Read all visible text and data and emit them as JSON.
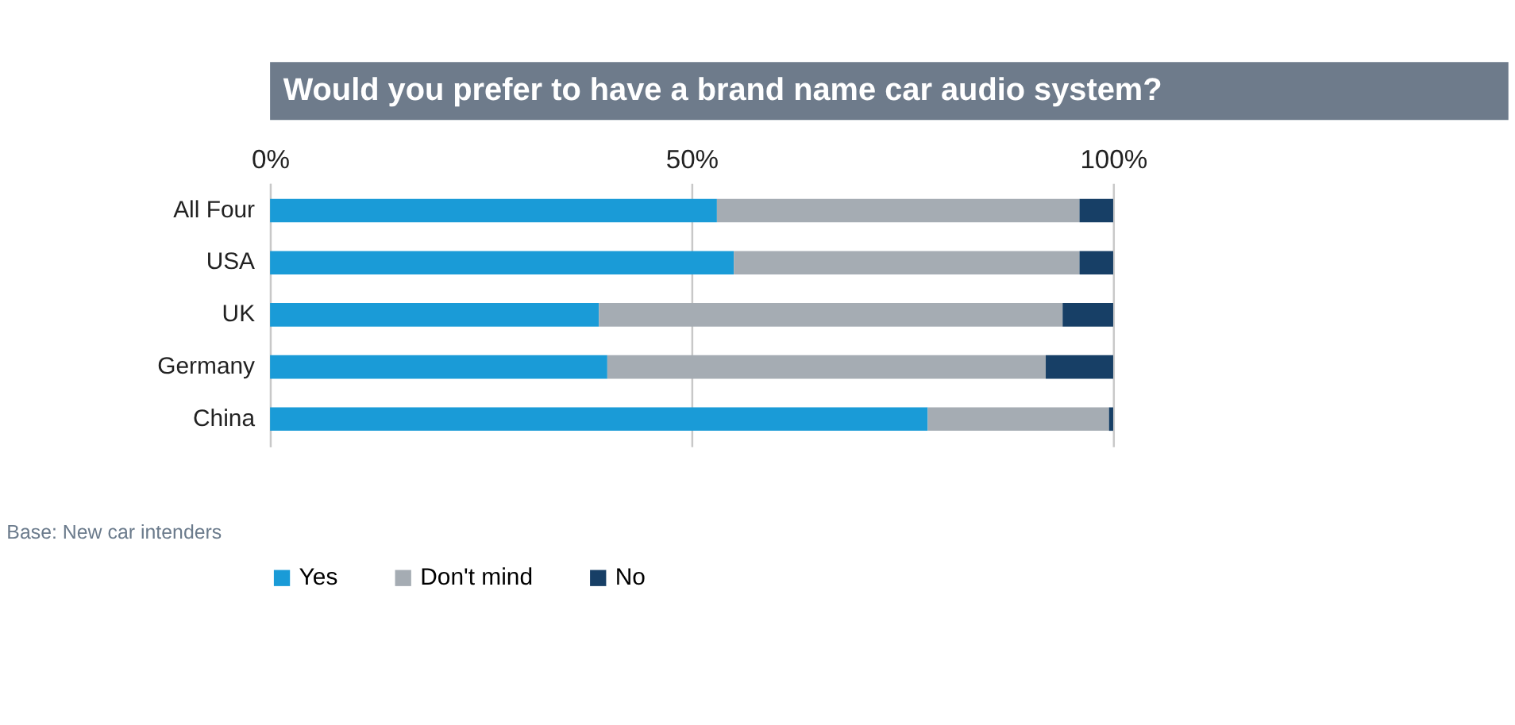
{
  "chart_data": {
    "type": "bar",
    "orientation": "horizontal",
    "stacked": true,
    "title": "Would you prefer to have a brand name car audio system?",
    "categories": [
      "All Four",
      "USA",
      "UK",
      "Germany",
      "China"
    ],
    "series": [
      {
        "name": "Yes",
        "color": "#1a9bd7",
        "values": [
          53,
          55,
          39,
          40,
          78
        ]
      },
      {
        "name": "Don't mind",
        "color": "#a5acb3",
        "values": [
          43,
          41,
          55,
          52,
          21.5
        ]
      },
      {
        "name": "No",
        "color": "#173f66",
        "values": [
          4,
          4,
          6,
          8,
          0.5
        ]
      }
    ],
    "xlim": [
      0,
      100
    ],
    "xticks": [
      {
        "value": 0,
        "label": "0%"
      },
      {
        "value": 50,
        "label": "50%"
      },
      {
        "value": 100,
        "label": "100%"
      }
    ],
    "grid": "x",
    "legend": "bottom",
    "annotations": [
      "Base: New car intenders"
    ]
  }
}
